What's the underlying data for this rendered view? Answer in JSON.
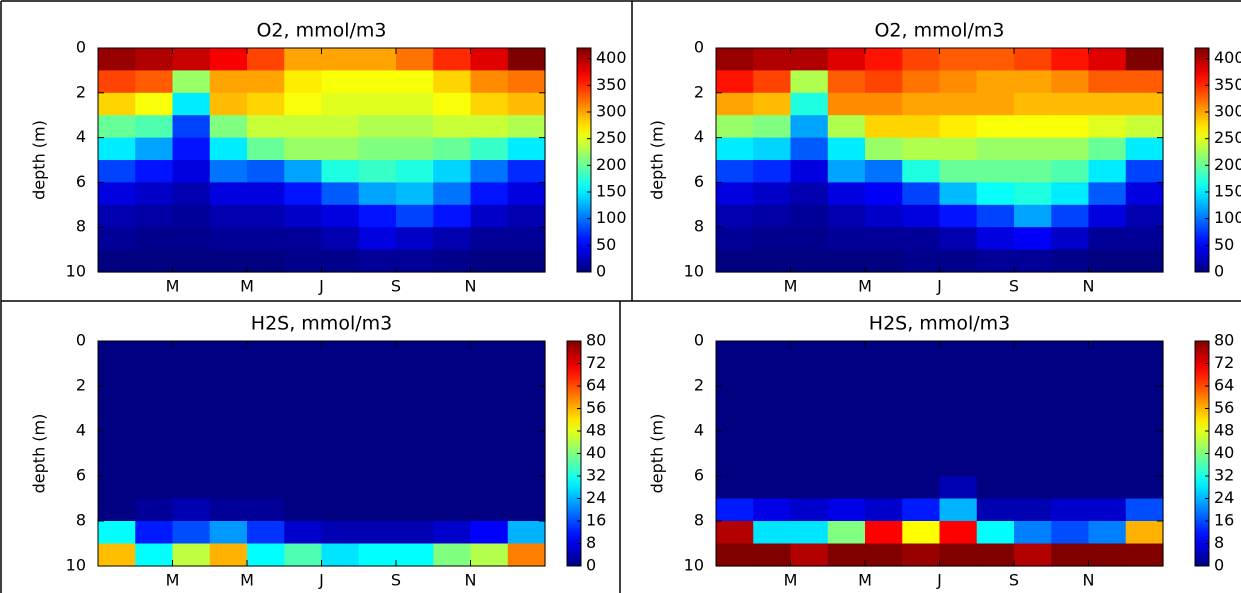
{
  "chart_data": [
    {
      "type": "heatmap",
      "title": "O2, mmol/m3",
      "ylabel": "depth (m)",
      "colorscale": "jet",
      "xlim": [
        0,
        12
      ],
      "xticks": [
        {
          "value": 2,
          "label": "M"
        },
        {
          "value": 4,
          "label": "M"
        },
        {
          "value": 6,
          "label": "J"
        },
        {
          "value": 8,
          "label": "S"
        },
        {
          "value": 10,
          "label": "N"
        }
      ],
      "ylim": [
        10,
        0
      ],
      "yticks": [
        0,
        2,
        4,
        6,
        8,
        10
      ],
      "zlim": [
        0,
        420
      ],
      "zticks": [
        0,
        50,
        100,
        150,
        200,
        250,
        300,
        350,
        400
      ],
      "z": [
        [
          410,
          400,
          390,
          370,
          340,
          300,
          300,
          300,
          320,
          350,
          380,
          420
        ],
        [
          340,
          330,
          220,
          300,
          300,
          270,
          260,
          260,
          260,
          280,
          310,
          320
        ],
        [
          280,
          260,
          150,
          290,
          280,
          260,
          250,
          250,
          250,
          260,
          280,
          290
        ],
        [
          200,
          190,
          80,
          210,
          240,
          240,
          240,
          230,
          230,
          240,
          240,
          230
        ],
        [
          150,
          120,
          60,
          150,
          200,
          220,
          220,
          210,
          210,
          200,
          180,
          150
        ],
        [
          80,
          60,
          40,
          100,
          90,
          120,
          170,
          180,
          170,
          140,
          100,
          70
        ],
        [
          40,
          30,
          20,
          40,
          40,
          60,
          90,
          120,
          130,
          100,
          60,
          40
        ],
        [
          20,
          15,
          10,
          20,
          20,
          30,
          40,
          60,
          80,
          60,
          30,
          20
        ],
        [
          10,
          5,
          5,
          10,
          10,
          10,
          20,
          40,
          30,
          20,
          10,
          10
        ],
        [
          0,
          0,
          0,
          0,
          0,
          5,
          5,
          10,
          10,
          5,
          0,
          0
        ]
      ]
    },
    {
      "type": "heatmap",
      "title": "O2, mmol/m3",
      "ylabel": "depth (m)",
      "colorscale": "jet",
      "xlim": [
        0,
        12
      ],
      "xticks": [
        {
          "value": 2,
          "label": "M"
        },
        {
          "value": 4,
          "label": "M"
        },
        {
          "value": 6,
          "label": "J"
        },
        {
          "value": 8,
          "label": "S"
        },
        {
          "value": 10,
          "label": "N"
        }
      ],
      "ylim": [
        10,
        0
      ],
      "yticks": [
        0,
        2,
        4,
        6,
        8,
        10
      ],
      "zlim": [
        0,
        420
      ],
      "zticks": [
        0,
        50,
        100,
        150,
        200,
        250,
        300,
        350,
        400
      ],
      "z": [
        [
          410,
          400,
          400,
          380,
          360,
          340,
          330,
          330,
          340,
          360,
          380,
          420
        ],
        [
          360,
          340,
          230,
          330,
          340,
          320,
          310,
          300,
          300,
          310,
          330,
          330
        ],
        [
          300,
          290,
          170,
          310,
          310,
          300,
          300,
          300,
          290,
          290,
          290,
          290
        ],
        [
          220,
          210,
          120,
          230,
          280,
          280,
          270,
          260,
          260,
          260,
          250,
          240
        ],
        [
          150,
          140,
          90,
          150,
          220,
          230,
          230,
          220,
          220,
          220,
          200,
          150
        ],
        [
          80,
          70,
          40,
          120,
          100,
          170,
          200,
          200,
          200,
          190,
          150,
          80
        ],
        [
          40,
          30,
          20,
          40,
          50,
          80,
          130,
          160,
          170,
          150,
          90,
          40
        ],
        [
          20,
          15,
          10,
          20,
          30,
          40,
          60,
          80,
          120,
          80,
          40,
          20
        ],
        [
          10,
          5,
          5,
          10,
          10,
          10,
          20,
          40,
          50,
          30,
          10,
          10
        ],
        [
          0,
          0,
          0,
          0,
          0,
          5,
          5,
          10,
          10,
          5,
          0,
          0
        ]
      ]
    },
    {
      "type": "heatmap",
      "title": "H2S, mmol/m3",
      "ylabel": "depth (m)",
      "colorscale": "jet",
      "xlim": [
        0,
        12
      ],
      "xticks": [
        {
          "value": 2,
          "label": "M"
        },
        {
          "value": 4,
          "label": "M"
        },
        {
          "value": 6,
          "label": "J"
        },
        {
          "value": 8,
          "label": "S"
        },
        {
          "value": 10,
          "label": "N"
        }
      ],
      "ylim": [
        10,
        0
      ],
      "yticks": [
        0,
        2,
        4,
        6,
        8,
        10
      ],
      "zlim": [
        0,
        80
      ],
      "zticks": [
        0,
        8,
        16,
        24,
        32,
        40,
        48,
        56,
        64,
        72,
        80
      ],
      "z": [
        [
          0,
          0,
          0,
          0,
          0,
          0,
          0,
          0,
          0,
          0,
          0,
          0
        ],
        [
          0,
          0,
          0,
          0,
          0,
          0,
          0,
          0,
          0,
          0,
          0,
          0
        ],
        [
          0,
          0,
          0,
          0,
          0,
          0,
          0,
          0,
          0,
          0,
          0,
          0
        ],
        [
          0,
          0,
          0,
          0,
          0,
          0,
          0,
          0,
          0,
          0,
          0,
          0
        ],
        [
          0,
          0,
          0,
          0,
          0,
          0,
          0,
          0,
          0,
          0,
          0,
          0
        ],
        [
          0,
          0,
          0,
          0,
          0,
          0,
          0,
          0,
          0,
          0,
          0,
          0
        ],
        [
          0,
          0,
          0,
          0,
          0,
          0,
          0,
          0,
          0,
          0,
          0,
          0
        ],
        [
          0,
          2,
          4,
          2,
          2,
          0,
          0,
          0,
          0,
          0,
          0,
          0
        ],
        [
          30,
          12,
          16,
          22,
          14,
          6,
          4,
          4,
          4,
          6,
          10,
          24
        ],
        [
          55,
          30,
          45,
          56,
          30,
          36,
          28,
          30,
          30,
          40,
          44,
          60
        ]
      ]
    },
    {
      "type": "heatmap",
      "title": "H2S, mmol/m3",
      "ylabel": "depth (m)",
      "colorscale": "jet",
      "xlim": [
        0,
        12
      ],
      "xticks": [
        {
          "value": 2,
          "label": "M"
        },
        {
          "value": 4,
          "label": "M"
        },
        {
          "value": 6,
          "label": "J"
        },
        {
          "value": 8,
          "label": "S"
        },
        {
          "value": 10,
          "label": "N"
        }
      ],
      "ylim": [
        10,
        0
      ],
      "yticks": [
        0,
        2,
        4,
        6,
        8,
        10
      ],
      "zlim": [
        0,
        80
      ],
      "zticks": [
        0,
        8,
        16,
        24,
        32,
        40,
        48,
        56,
        64,
        72,
        80
      ],
      "z": [
        [
          0,
          0,
          0,
          0,
          0,
          0,
          0,
          0,
          0,
          0,
          0,
          0
        ],
        [
          0,
          0,
          0,
          0,
          0,
          0,
          0,
          0,
          0,
          0,
          0,
          0
        ],
        [
          0,
          0,
          0,
          0,
          0,
          0,
          0,
          0,
          0,
          0,
          0,
          0
        ],
        [
          0,
          0,
          0,
          0,
          0,
          0,
          0,
          0,
          0,
          0,
          0,
          0
        ],
        [
          0,
          0,
          0,
          0,
          0,
          0,
          0,
          0,
          0,
          0,
          0,
          0
        ],
        [
          0,
          0,
          0,
          0,
          0,
          0,
          0,
          0,
          0,
          0,
          0,
          0
        ],
        [
          0,
          0,
          0,
          0,
          0,
          0,
          4,
          0,
          0,
          0,
          0,
          0
        ],
        [
          12,
          8,
          6,
          8,
          6,
          12,
          24,
          4,
          4,
          6,
          6,
          16
        ],
        [
          76,
          28,
          28,
          40,
          70,
          50,
          70,
          30,
          20,
          16,
          20,
          56
        ],
        [
          80,
          80,
          76,
          80,
          80,
          78,
          80,
          80,
          76,
          80,
          80,
          80
        ]
      ]
    }
  ]
}
